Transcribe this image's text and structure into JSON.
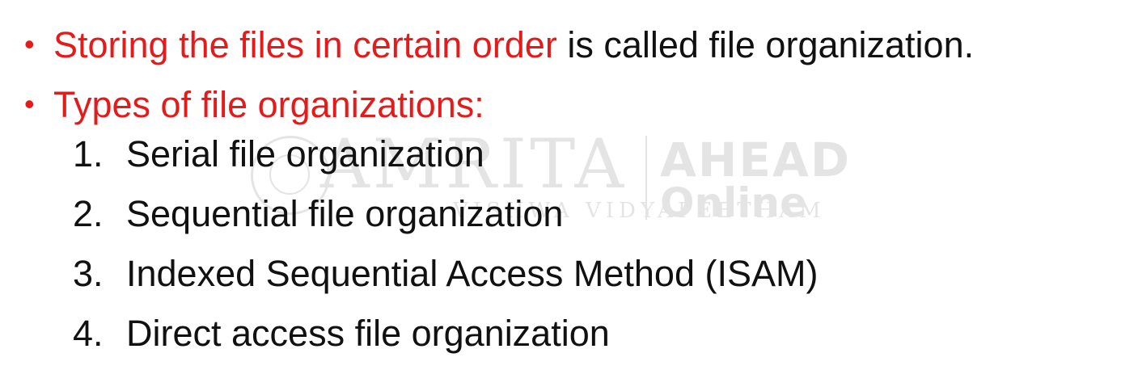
{
  "bullets": [
    {
      "highlight": "Storing the files in certain order",
      "rest": " is called file organization."
    },
    {
      "highlight": "Types of file organizations:",
      "rest": ""
    }
  ],
  "bullet_symbol": "•",
  "items": [
    {
      "number": "1.",
      "text": "Serial file organization"
    },
    {
      "number": "2.",
      "text": "Sequential file organization"
    },
    {
      "number": "3.",
      "text": "Indexed Sequential Access Method (ISAM)"
    },
    {
      "number": "4.",
      "text": "Direct access file organization"
    }
  ],
  "watermark": {
    "word": "AMRITA",
    "sub": "VISHWA VIDYAPEETHAM",
    "brand": "AHEAD",
    "brand_sub": "Online"
  },
  "colors": {
    "highlight": "#e31b1b",
    "text": "#111111",
    "background": "#ffffff"
  }
}
